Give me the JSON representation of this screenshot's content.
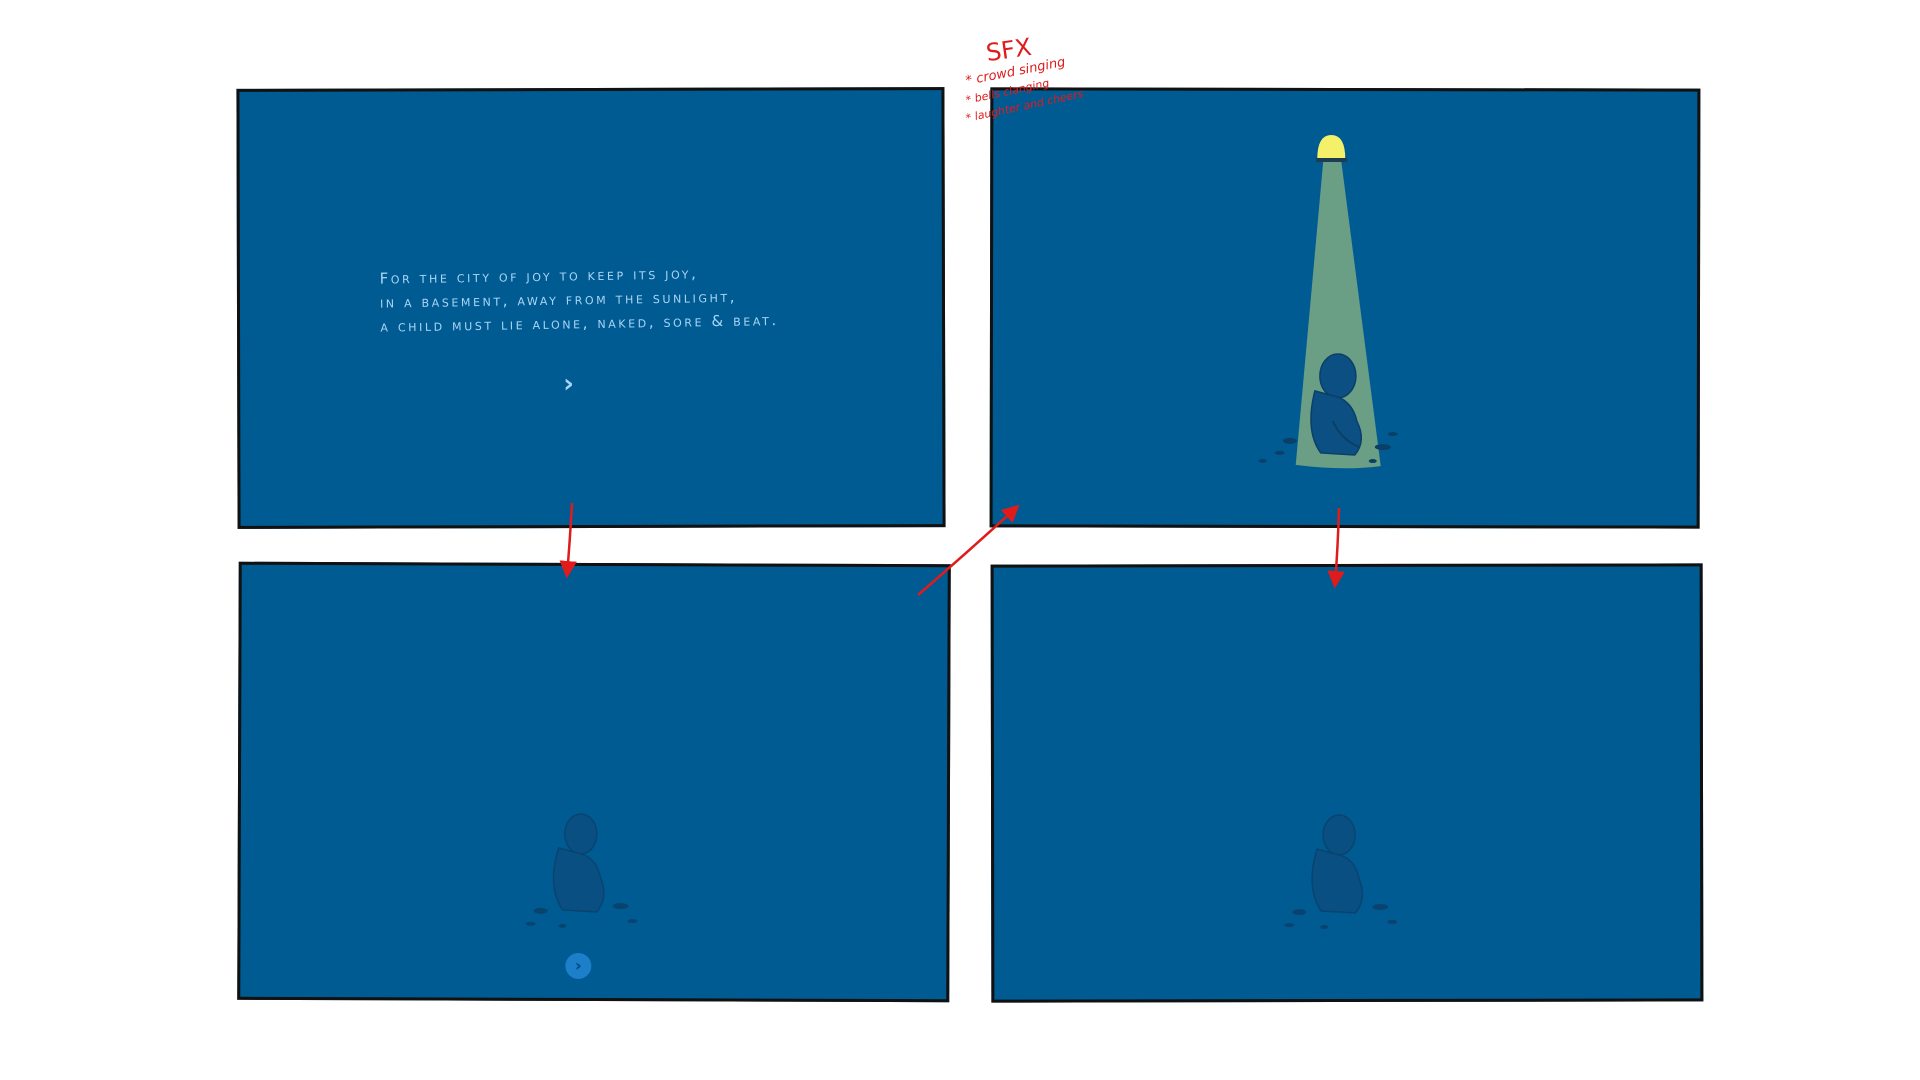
{
  "panels": [
    {
      "id": "panel-1",
      "narration_lines": [
        "For the city of joy to keep its joy,",
        "in a basement, away from the sunlight,",
        "a child must lie alone, naked, sore & beat."
      ],
      "next_glyph": "›"
    },
    {
      "id": "panel-2",
      "scene": "child-under-spotlight"
    },
    {
      "id": "panel-3",
      "scene": "child-in-dark",
      "next_glyph": "›"
    },
    {
      "id": "panel-4",
      "scene": "child-in-dark"
    }
  ],
  "sfx_note": {
    "title": "SFX",
    "items": [
      "* crowd singing",
      "* bells clanging",
      "* laughter and cheers"
    ]
  },
  "colors": {
    "panel_bg": "#005b93",
    "text": "#a9d6f4",
    "annotation": "#e01b1b",
    "spotlight": "#6a9e85",
    "bulb": "#f4f06a",
    "child": "#0c4f82"
  }
}
